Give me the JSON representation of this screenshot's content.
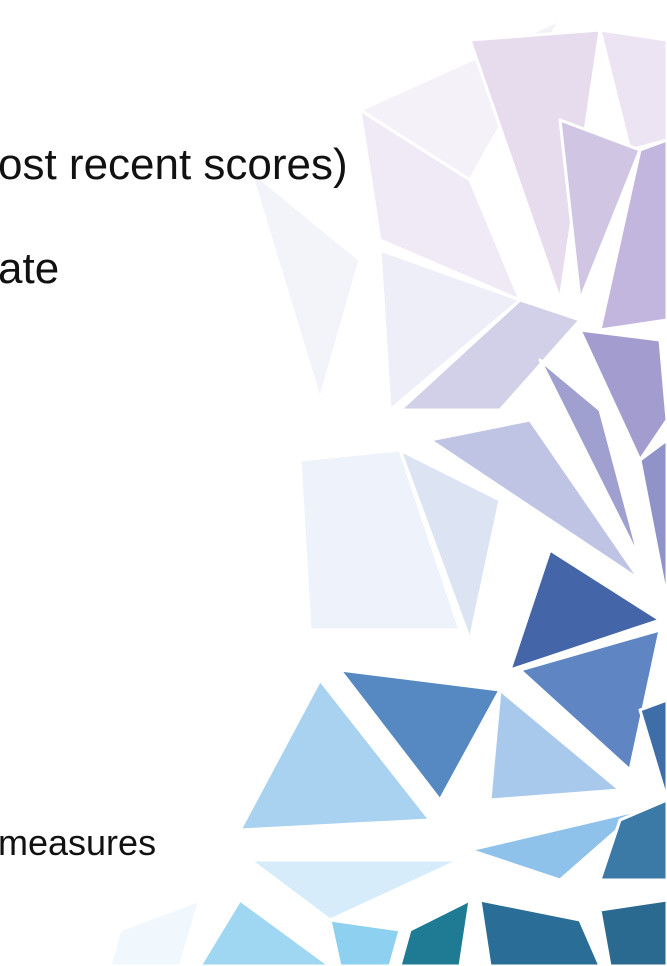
{
  "texts": [
    "ost recent scores)",
    "ate",
    "measures"
  ]
}
